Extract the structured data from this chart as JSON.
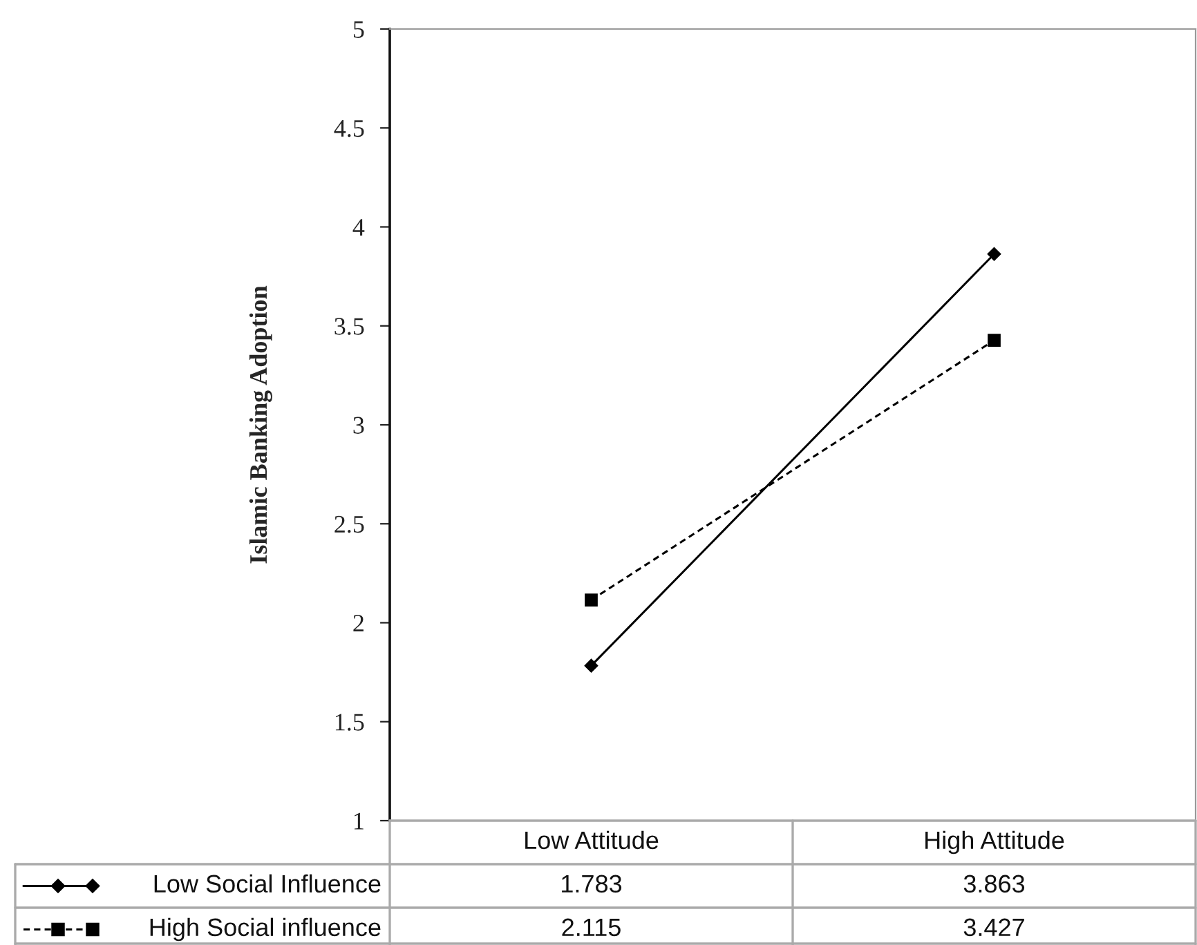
{
  "chart_data": {
    "type": "line",
    "ylabel": "Islamic Banking Adoption",
    "categories": [
      "Low Attitude",
      "High Attitude"
    ],
    "series": [
      {
        "name": "Low Social Influence",
        "color": "#000000",
        "values": [
          1.783,
          3.863
        ],
        "marker": "diamond",
        "line_style": "solid"
      },
      {
        "name": "High Social influence",
        "color": "#000000",
        "values": [
          2.115,
          3.427
        ],
        "marker": "square",
        "line_style": "dashed"
      }
    ],
    "ylim": [
      1,
      5
    ],
    "yticks": [
      1,
      1.5,
      2,
      2.5,
      3,
      3.5,
      4,
      4.5,
      5
    ],
    "grid": false,
    "legend": "bottom",
    "data_labels": true
  }
}
